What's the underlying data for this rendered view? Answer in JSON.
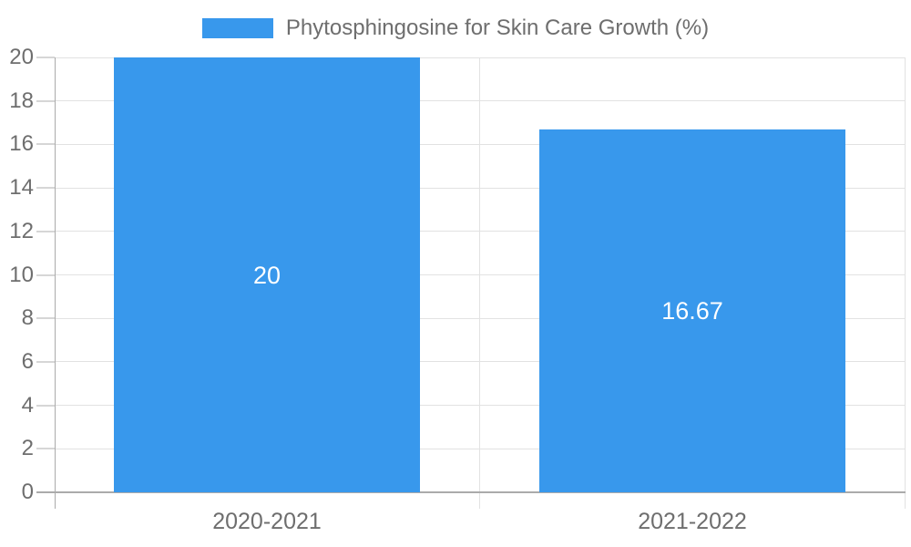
{
  "legend": {
    "label": "Phytosphingosine for Skin Care Growth (%)"
  },
  "chart_data": {
    "type": "bar",
    "series_name": "Phytosphingosine for Skin Care Growth (%)",
    "categories": [
      "2020-2021",
      "2021-2022"
    ],
    "values": [
      20,
      16.67
    ],
    "bar_labels": [
      "20",
      "16.67"
    ],
    "xlabel": "",
    "ylabel": "",
    "ylim": [
      0,
      20
    ],
    "yticks": [
      0,
      2,
      4,
      6,
      8,
      10,
      12,
      14,
      16,
      18,
      20
    ],
    "grid": true,
    "legend_position": "top-center",
    "bar_label_position": "inside-center"
  },
  "colors": {
    "bar": "#3898ec",
    "grid": "#e2e2e2",
    "axis": "#ababab",
    "tick": "#d6d6d6",
    "text": "#6e6e6e",
    "bar_label": "#ffffff",
    "background": "#ffffff"
  }
}
